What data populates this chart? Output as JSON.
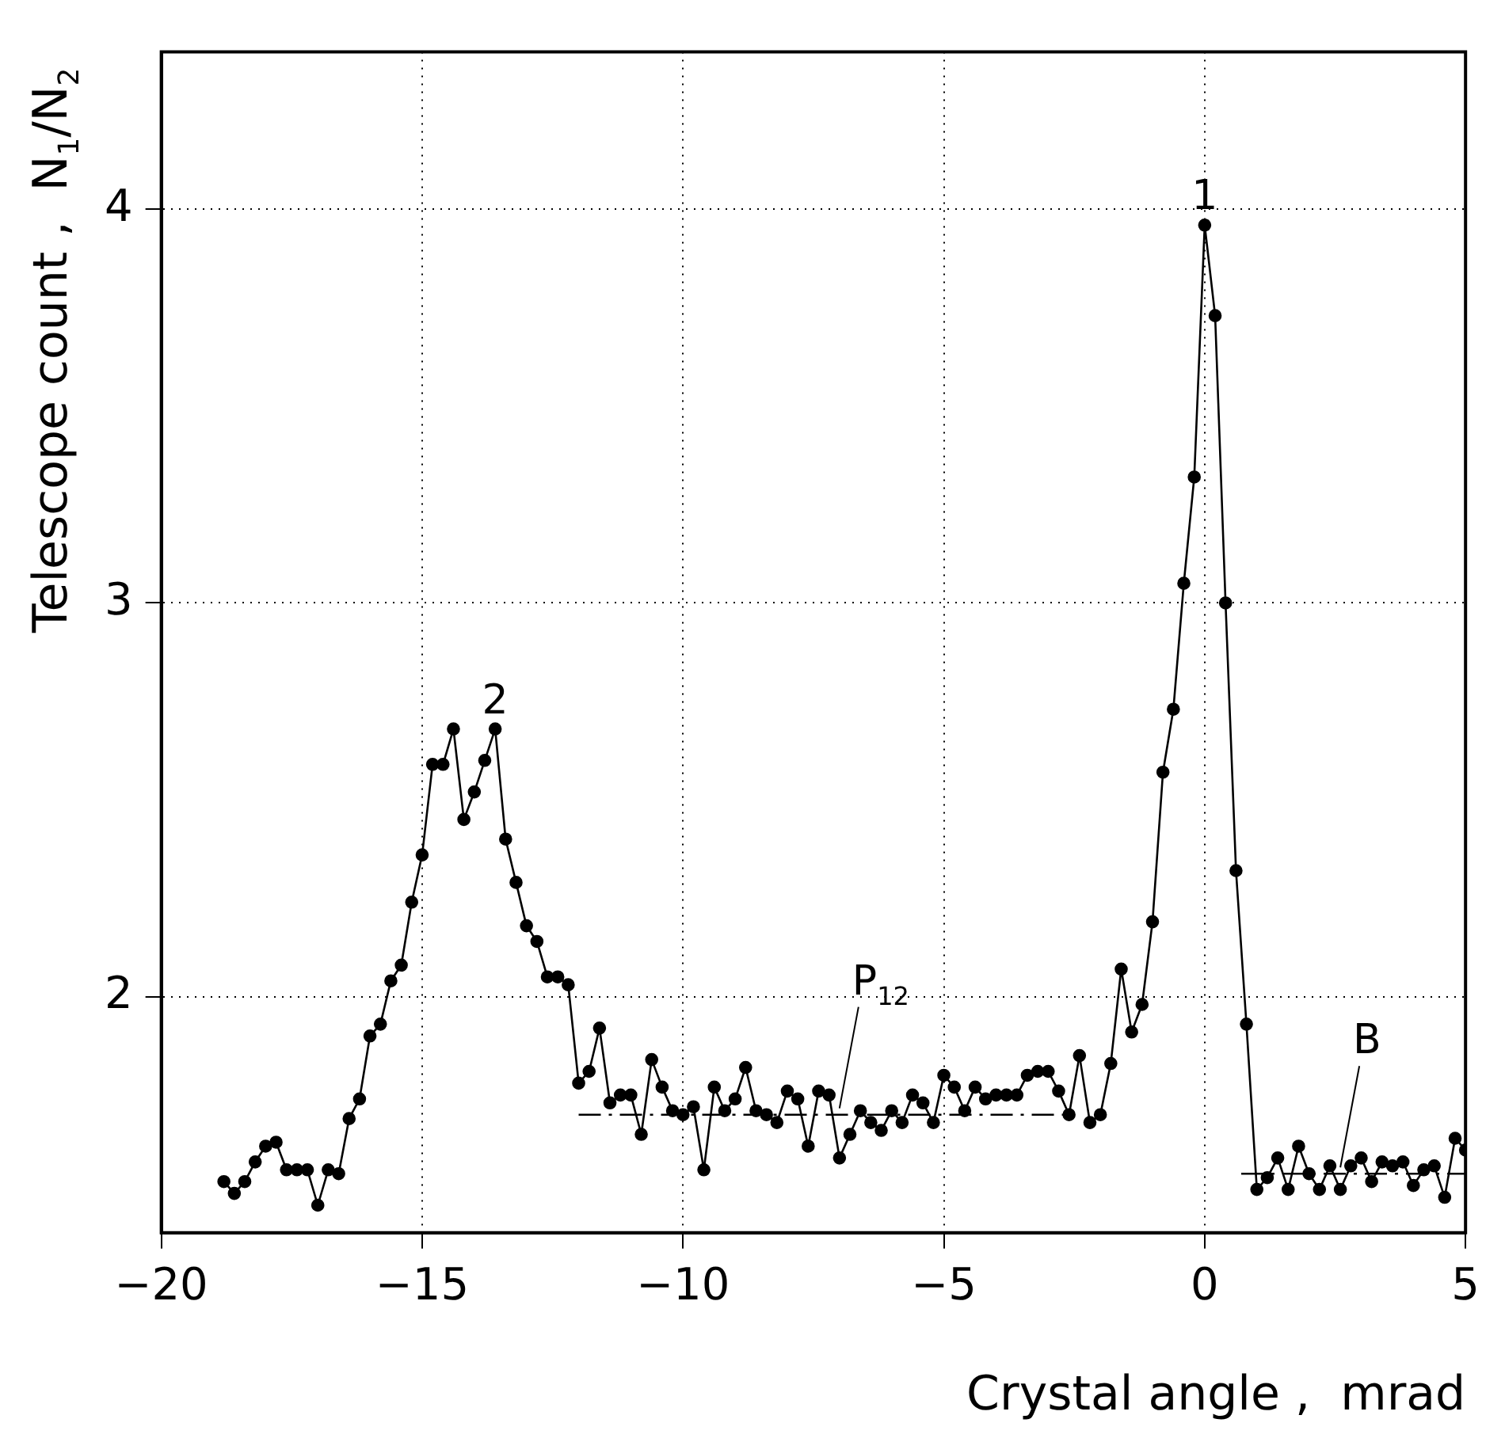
{
  "chart_data": {
    "type": "line",
    "xlabel": "Crystal angle ,  mrad",
    "ylabel": "Telescope count ,  N$_{1}$/N$_{2}$",
    "xlim": [
      -20,
      5
    ],
    "xticks": [
      -20,
      -15,
      -10,
      -5,
      0,
      5
    ],
    "ylim": [
      1.4,
      4.4
    ],
    "yticks": [
      2,
      3,
      4
    ],
    "grid": true,
    "legend": false,
    "marker": "circle",
    "series": [
      {
        "color": "#000000",
        "line_style": "solid",
        "x": [
          -18.8,
          -18.6,
          -18.4,
          -18.2,
          -18,
          -17.8,
          -17.6,
          -17.4,
          -17.2,
          -17,
          -16.8,
          -16.6,
          -16.4,
          -16.2,
          -16,
          -15.8,
          -15.6,
          -15.4,
          -15.2,
          -15,
          -14.8,
          -14.6,
          -14.4,
          -14.2,
          -14,
          -13.8,
          -13.6,
          -13.4,
          -13.2,
          -13,
          -12.8,
          -12.6,
          -12.4,
          -12.2,
          -12,
          -11.8,
          -11.6,
          -11.4,
          -11.2,
          -11,
          -10.8,
          -10.6,
          -10.4,
          -10.2,
          -10,
          -9.8,
          -9.6,
          -9.4,
          -9.2,
          -9,
          -8.8,
          -8.6,
          -8.4,
          -8.2,
          -8,
          -7.8,
          -7.6,
          -7.4,
          -7.2,
          -7,
          -6.8,
          -6.6,
          -6.4,
          -6.2,
          -6,
          -5.8,
          -5.6,
          -5.4,
          -5.2,
          -5,
          -4.8,
          -4.6,
          -4.4,
          -4.2,
          -4,
          -3.8,
          -3.6,
          -3.4,
          -3.2,
          -3,
          -2.8,
          -2.6,
          -2.4,
          -2.2,
          -2,
          -1.8,
          -1.6,
          -1.4,
          -1.2,
          -1,
          -0.8,
          -0.6,
          -0.4,
          -0.2,
          0,
          0.2,
          0.4,
          0.6,
          0.8,
          1,
          1.2,
          1.4,
          1.6,
          1.8,
          2,
          2.2,
          2.4,
          2.6,
          2.8,
          3,
          3.2,
          3.4,
          3.6,
          3.8,
          4,
          4.2,
          4.4,
          4.6,
          4.8,
          5
        ],
        "values": [
          1.53,
          1.5,
          1.53,
          1.58,
          1.62,
          1.63,
          1.56,
          1.56,
          1.56,
          1.47,
          1.56,
          1.55,
          1.69,
          1.74,
          1.9,
          1.93,
          2.04,
          2.08,
          2.24,
          2.36,
          2.59,
          2.59,
          2.68,
          2.45,
          2.52,
          2.6,
          2.68,
          2.4,
          2.29,
          2.18,
          2.14,
          2.05,
          2.05,
          2.03,
          1.78,
          1.81,
          1.92,
          1.73,
          1.75,
          1.75,
          1.65,
          1.84,
          1.77,
          1.71,
          1.7,
          1.72,
          1.56,
          1.77,
          1.71,
          1.74,
          1.82,
          1.71,
          1.7,
          1.68,
          1.76,
          1.74,
          1.62,
          1.76,
          1.75,
          1.59,
          1.65,
          1.71,
          1.68,
          1.66,
          1.71,
          1.68,
          1.75,
          1.73,
          1.68,
          1.8,
          1.77,
          1.71,
          1.77,
          1.74,
          1.75,
          1.75,
          1.75,
          1.8,
          1.81,
          1.81,
          1.76,
          1.7,
          1.85,
          1.68,
          1.7,
          1.83,
          2.07,
          1.91,
          1.98,
          2.19,
          2.57,
          2.73,
          3.05,
          3.32,
          3.96,
          3.73,
          3.0,
          2.32,
          1.93,
          1.51,
          1.54,
          1.59,
          1.51,
          1.62,
          1.55,
          1.51,
          1.57,
          1.51,
          1.57,
          1.59,
          1.53,
          1.58,
          1.57,
          1.58,
          1.52,
          1.56,
          1.57,
          1.49,
          1.64,
          1.61
        ]
      },
      {
        "type": "line",
        "color": "#000000",
        "line_style": "dashed",
        "marker": "none",
        "x": [
          -12,
          -2.6
        ],
        "values": [
          1.7,
          1.7
        ]
      },
      {
        "type": "line",
        "color": "#000000",
        "line_style": "dashed",
        "marker": "none",
        "x": [
          0.7,
          5
        ],
        "values": [
          1.55,
          1.55
        ]
      }
    ],
    "annotations": [
      {
        "text": "1",
        "x": 0,
        "y": 3.96
      },
      {
        "text": "2",
        "x": -13.6,
        "y": 2.68
      },
      {
        "text": "P$_{12}$",
        "x": -7,
        "y": 1.7
      },
      {
        "text": "B",
        "x": 2.6,
        "y": 1.55
      }
    ]
  }
}
